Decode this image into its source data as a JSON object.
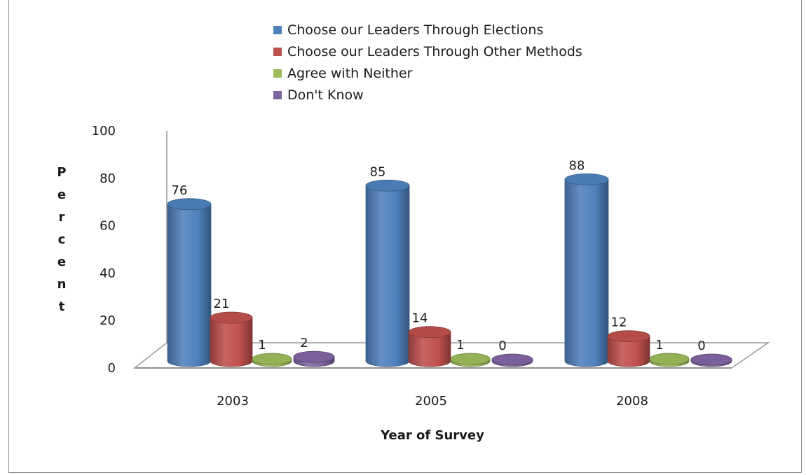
{
  "chart_data": {
    "type": "bar",
    "categories": [
      "2003",
      "2005",
      "2008"
    ],
    "series": [
      {
        "name": "Choose our Leaders Through Elections",
        "values": [
          76,
          85,
          88
        ],
        "color": "#4f81bd"
      },
      {
        "name": "Choose our Leaders Through Other Methods",
        "values": [
          21,
          14,
          12
        ],
        "color": "#c0504d"
      },
      {
        "name": "Agree with Neither",
        "values": [
          1,
          1,
          1
        ],
        "color": "#9bbb59"
      },
      {
        "name": "Don't Know",
        "values": [
          2,
          0,
          0
        ],
        "color": "#8064a2"
      }
    ],
    "data_labels": [
      [
        "76",
        "85",
        "88"
      ],
      [
        "21",
        "14",
        "12"
      ],
      [
        "1",
        "1",
        "1"
      ],
      [
        "2",
        "0",
        "0"
      ]
    ],
    "xlabel": "Year of Survey",
    "ylabel": "Percent",
    "ylim": [
      0,
      100
    ],
    "yticks": [
      "0",
      "20",
      "40",
      "60",
      "80",
      "100"
    ],
    "grid": false,
    "legend_position": "top"
  }
}
